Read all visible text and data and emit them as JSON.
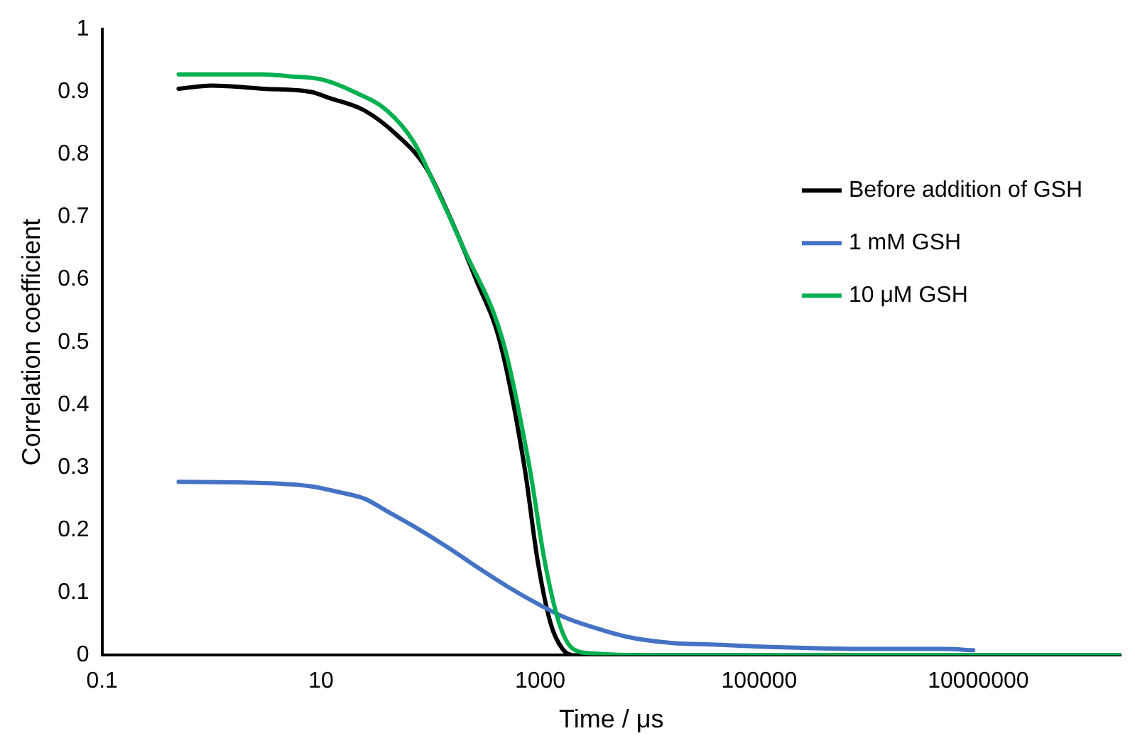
{
  "chart_data": {
    "type": "line",
    "xlabel": "Time / μs",
    "ylabel": "Correlation coefficient",
    "log": "x",
    "xlim": [
      0.1,
      200000000
    ],
    "xticks": [
      0.1,
      10,
      1000,
      100000,
      10000000
    ],
    "ylim": [
      0,
      1
    ],
    "yticks": [
      0,
      0.1,
      0.2,
      0.3,
      0.4,
      0.5,
      0.6,
      0.7,
      0.8,
      0.9,
      1
    ],
    "grid": false,
    "legend": "top right",
    "marker": "none",
    "line_style": "solid",
    "series": [
      {
        "name": "Before addition of GSH",
        "color": "#000000",
        "x": [
          0.5,
          1,
          3,
          8,
          12,
          25,
          50,
          90,
          150,
          260,
          430,
          720,
          950,
          1250,
          1600,
          2000,
          10000,
          100000,
          1000000,
          10000000,
          200000000
        ],
        "values": [
          0.905,
          0.91,
          0.905,
          0.9,
          0.89,
          0.87,
          0.83,
          0.78,
          0.7,
          0.6,
          0.5,
          0.3,
          0.15,
          0.05,
          0.01,
          0,
          0,
          0,
          0,
          0,
          0
        ]
      },
      {
        "name": "1 mM GSH",
        "color": "#4472c4",
        "x": [
          0.5,
          2,
          8,
          15,
          25,
          40,
          80,
          150,
          270,
          500,
          1000,
          1700,
          3000,
          6000,
          15000,
          40000,
          150000,
          1000000,
          5000000,
          9000000
        ],
        "values": [
          0.277,
          0.276,
          0.27,
          0.26,
          0.25,
          0.23,
          0.2,
          0.17,
          0.14,
          0.11,
          0.08,
          0.06,
          0.045,
          0.03,
          0.02,
          0.017,
          0.013,
          0.01,
          0.01,
          0.008
        ]
      },
      {
        "name": "10 μM GSH",
        "color": "#00b050",
        "x": [
          0.5,
          3,
          5,
          10,
          20,
          40,
          70,
          110,
          200,
          460,
          800,
          1100,
          1500,
          2000,
          3000,
          10000,
          100000,
          1000000,
          10000000,
          200000000
        ],
        "values": [
          0.928,
          0.928,
          0.925,
          0.92,
          0.9,
          0.87,
          0.82,
          0.75,
          0.65,
          0.5,
          0.3,
          0.15,
          0.05,
          0.01,
          0.003,
          0,
          0,
          0,
          0,
          0
        ]
      }
    ]
  }
}
